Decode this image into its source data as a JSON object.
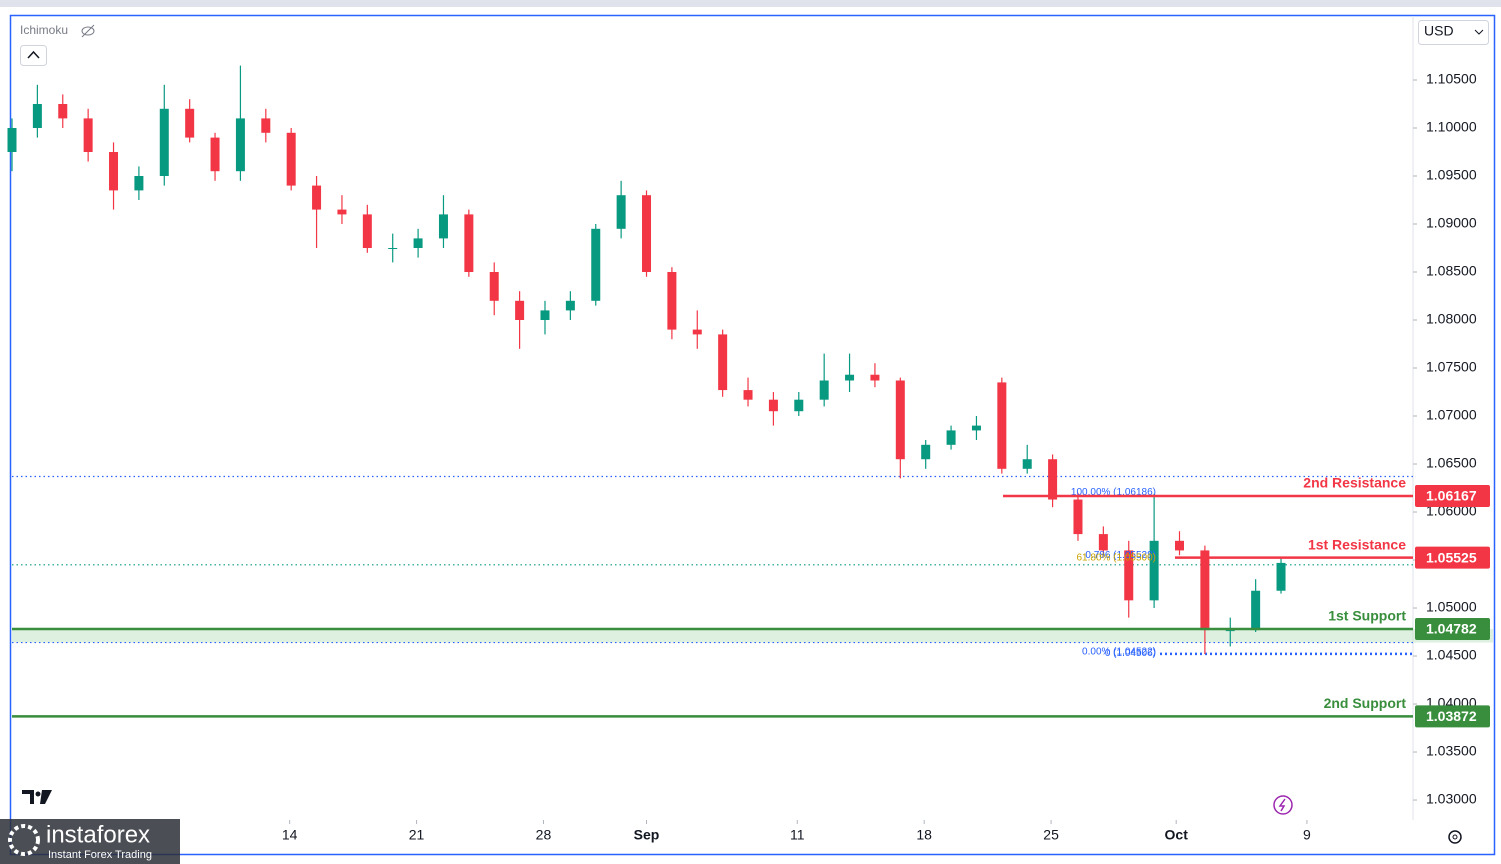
{
  "chart_data": {
    "type": "candlestick",
    "indicator": "Ichimoku",
    "currency": "USD",
    "watermark": {
      "brand": "instaforex",
      "tagline": "Instant Forex Trading"
    },
    "up_color": "#089981",
    "down_color": "#f23645",
    "x": [
      0,
      1,
      2,
      3,
      4,
      5,
      6,
      7,
      8,
      9,
      10,
      11,
      12,
      13,
      14,
      15,
      16,
      17,
      18,
      19,
      20,
      21,
      22,
      23,
      24,
      25,
      26,
      27,
      28,
      29,
      30,
      31,
      32,
      33,
      34,
      35,
      36,
      37,
      38,
      39,
      40,
      41,
      42,
      43,
      44,
      45,
      46,
      47,
      48,
      49,
      50
    ],
    "open": [
      1.0975,
      1.1,
      1.1025,
      1.101,
      1.0975,
      1.0935,
      1.095,
      1.102,
      1.099,
      1.0955,
      1.101,
      1.0995,
      1.094,
      1.0915,
      1.091,
      1.0875,
      1.0875,
      1.0885,
      1.091,
      1.085,
      1.082,
      1.08,
      1.081,
      1.082,
      1.0895,
      1.093,
      1.085,
      1.079,
      1.0785,
      1.0727,
      1.0717,
      1.0705,
      1.0717,
      1.0737,
      1.0743,
      1.0737,
      1.0655,
      1.067,
      1.0685,
      1.0735,
      1.0645,
      1.0655,
      1.0613,
      1.0577,
      1.056,
      1.0508,
      1.057,
      1.056,
      1.0477,
      1.0477,
      1.0518
    ],
    "high": [
      1.101,
      1.1045,
      1.1035,
      1.102,
      1.0985,
      1.096,
      1.1045,
      1.103,
      1.0995,
      1.1065,
      1.102,
      1.1,
      1.095,
      1.093,
      1.092,
      1.089,
      1.0895,
      1.093,
      1.0915,
      1.086,
      1.083,
      1.082,
      1.083,
      1.09,
      1.0945,
      1.0935,
      1.0855,
      1.081,
      1.079,
      1.074,
      1.0725,
      1.0725,
      1.0765,
      1.0765,
      1.0755,
      1.074,
      1.0675,
      1.069,
      1.07,
      1.074,
      1.067,
      1.066,
      1.062,
      1.0585,
      1.057,
      1.0619,
      1.058,
      1.0565,
      1.049,
      1.053,
      1.0552
    ],
    "low": [
      1.0955,
      1.099,
      1.1,
      1.0965,
      1.0915,
      1.0925,
      1.094,
      1.0985,
      1.0945,
      1.0945,
      1.0985,
      1.0935,
      1.0875,
      1.09,
      1.087,
      1.086,
      1.0865,
      1.0875,
      1.0845,
      1.0805,
      1.077,
      1.0785,
      1.08,
      1.0815,
      1.0885,
      1.0845,
      1.078,
      1.077,
      1.072,
      1.071,
      1.069,
      1.07,
      1.071,
      1.0725,
      1.073,
      1.0635,
      1.0645,
      1.0665,
      1.0675,
      1.064,
      1.064,
      1.0605,
      1.057,
      1.0555,
      1.049,
      1.05,
      1.0555,
      1.0452,
      1.046,
      1.0475,
      1.0515
    ],
    "close": [
      1.1,
      1.1025,
      1.101,
      1.0975,
      1.0935,
      1.095,
      1.102,
      1.099,
      1.0955,
      1.101,
      1.0995,
      1.094,
      1.0915,
      1.091,
      1.0875,
      1.0875,
      1.0885,
      1.091,
      1.085,
      1.082,
      1.08,
      1.081,
      1.082,
      1.0895,
      1.093,
      1.085,
      1.079,
      1.0785,
      1.0727,
      1.0717,
      1.0705,
      1.0717,
      1.0737,
      1.0743,
      1.0737,
      1.0655,
      1.067,
      1.0685,
      1.069,
      1.0645,
      1.0655,
      1.0613,
      1.0577,
      1.056,
      1.0508,
      1.057,
      1.056,
      1.0477,
      1.0477,
      1.0518,
      1.0547
    ],
    "xlim": [
      0,
      55.2
    ],
    "xticks": [
      {
        "value": 10.94,
        "label": "14"
      },
      {
        "value": 15.94,
        "label": "21"
      },
      {
        "value": 20.94,
        "label": "28"
      },
      {
        "value": 25.0,
        "label": "Sep"
      },
      {
        "value": 30.94,
        "label": "11"
      },
      {
        "value": 35.94,
        "label": "18"
      },
      {
        "value": 40.94,
        "label": "25"
      },
      {
        "value": 45.87,
        "label": "Oct"
      },
      {
        "value": 51.02,
        "label": "9"
      }
    ],
    "ylim": [
      1.02792,
      1.11177
    ],
    "yticks": [
      {
        "value": 1.105,
        "label": "1.10500"
      },
      {
        "value": 1.1,
        "label": "1.10000"
      },
      {
        "value": 1.095,
        "label": "1.09500"
      },
      {
        "value": 1.09,
        "label": "1.09000"
      },
      {
        "value": 1.085,
        "label": "1.08500"
      },
      {
        "value": 1.08,
        "label": "1.08000"
      },
      {
        "value": 1.075,
        "label": "1.07500"
      },
      {
        "value": 1.07,
        "label": "1.07000"
      },
      {
        "value": 1.065,
        "label": "1.06500"
      },
      {
        "value": 1.06,
        "label": "1.06000"
      },
      {
        "value": 1.055,
        "label": "1.05500"
      },
      {
        "value": 1.05,
        "label": "1.05000"
      },
      {
        "value": 1.045,
        "label": "1.04500"
      },
      {
        "value": 1.04,
        "label": "1.04000"
      },
      {
        "value": 1.035,
        "label": "1.03500"
      },
      {
        "value": 1.03,
        "label": "1.03000"
      }
    ],
    "levels": [
      {
        "name": "2nd Resistance",
        "value": 1.06167,
        "color": "#f23645"
      },
      {
        "name": "1st Resistance",
        "value": 1.05525,
        "color": "#f23645"
      },
      {
        "name": "1st Support",
        "value": 1.04782,
        "color": "#388e3c"
      },
      {
        "name": "2nd Support",
        "value": 1.03872,
        "color": "#388e3c"
      }
    ],
    "guides": [
      {
        "value": 1.0637,
        "color": "#2962ff"
      },
      {
        "value": 1.0545,
        "color": "#089981"
      },
      {
        "value": 1.0464,
        "color": "#2962ff"
      },
      {
        "value": 1.04522,
        "color": "#2962ff"
      }
    ],
    "fib_labels": [
      {
        "value": 1.06186,
        "label": "100.00% (1.06186)",
        "color": "#2962ff"
      },
      {
        "value": 1.05528,
        "label": "0.786 (1.05528)",
        "color": "#2962ff"
      },
      {
        "value": 1.055,
        "label": "61.80% (1.05500)",
        "color": "#c9a400"
      },
      {
        "value": 1.04506,
        "label": "0 (1.04506)",
        "color": "#2962ff"
      },
      {
        "value": 1.04522,
        "label": "0.00% (1.04522)",
        "color": "#2962ff"
      }
    ]
  }
}
